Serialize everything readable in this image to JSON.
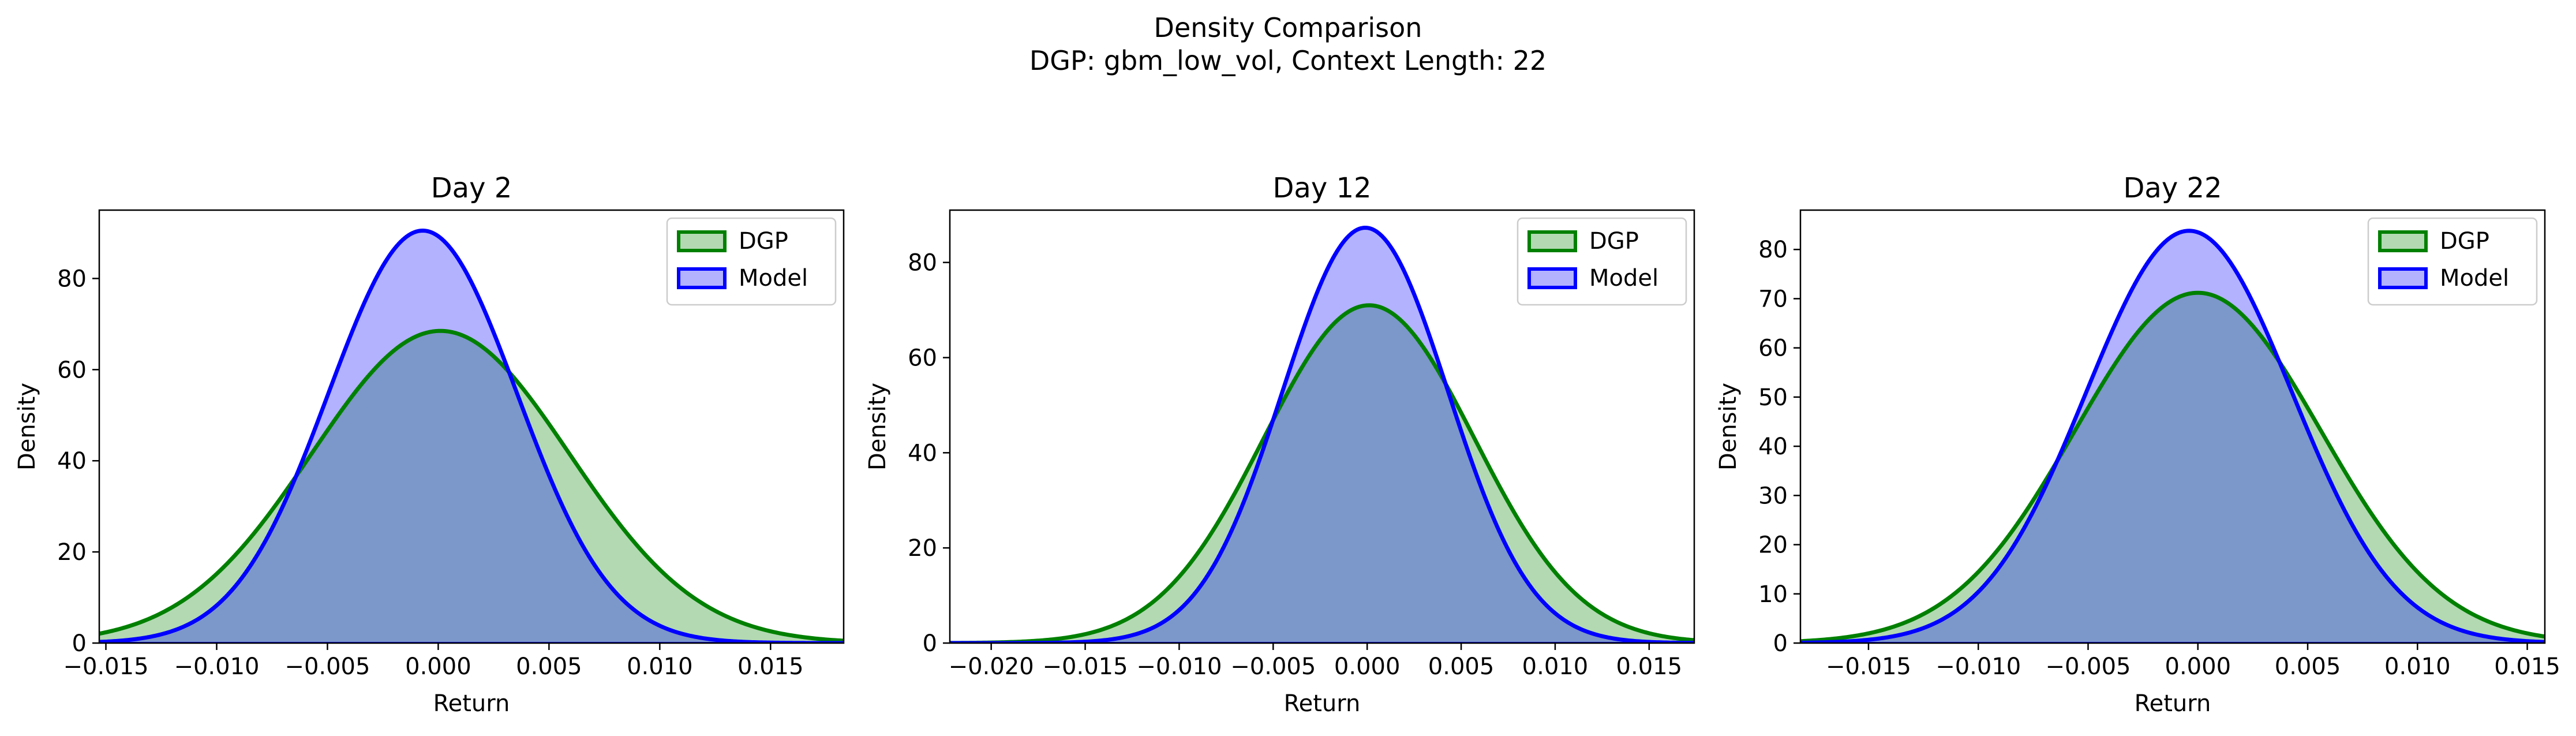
{
  "figure": {
    "title": "Density Comparison",
    "subtitle": "DGP: gbm_low_vol, Context Length: 22"
  },
  "legend": {
    "dgp_label": "DGP",
    "model_label": "Model",
    "dgp_color": "#008000",
    "model_color": "#0000ff",
    "placement": "upper-right"
  },
  "chart_data": [
    {
      "type": "area",
      "title": "Day 2",
      "xlabel": "Return",
      "ylabel": "Density",
      "xlim": [
        -0.0153,
        0.0183
      ],
      "ylim": [
        0,
        95
      ],
      "xticks": [
        -0.015,
        -0.01,
        -0.005,
        0.0,
        0.005,
        0.01,
        0.015
      ],
      "xtick_labels": [
        "−0.015",
        "−0.010",
        "−0.005",
        "0.000",
        "0.005",
        "0.010",
        "0.015"
      ],
      "yticks": [
        0,
        20,
        40,
        60,
        80
      ],
      "ytick_labels": [
        "0",
        "20",
        "40",
        "60",
        "80"
      ],
      "series": [
        {
          "name": "DGP",
          "color": "#008000",
          "peak_x": 0.0001,
          "peak_y": 68.5,
          "sigma": 0.00582
        },
        {
          "name": "Model",
          "color": "#0000ff",
          "peak_x": -0.0007,
          "peak_y": 90.5,
          "sigma": 0.00425
        }
      ]
    },
    {
      "type": "area",
      "title": "Day 12",
      "xlabel": "Return",
      "ylabel": "Density",
      "xlim": [
        -0.0222,
        0.0174
      ],
      "ylim": [
        0,
        91
      ],
      "xticks": [
        -0.02,
        -0.015,
        -0.01,
        -0.005,
        0.0,
        0.005,
        0.01,
        0.015
      ],
      "xtick_labels": [
        "−0.020",
        "−0.015",
        "−0.010",
        "−0.005",
        "0.000",
        "0.005",
        "0.010",
        "0.015"
      ],
      "yticks": [
        0,
        20,
        40,
        60,
        80
      ],
      "ytick_labels": [
        "0",
        "20",
        "40",
        "60",
        "80"
      ],
      "series": [
        {
          "name": "DGP",
          "color": "#008000",
          "peak_x": 0.0001,
          "peak_y": 71.0,
          "sigma": 0.0056
        },
        {
          "name": "Model",
          "color": "#0000ff",
          "peak_x": -0.0001,
          "peak_y": 87.3,
          "sigma": 0.0044
        }
      ]
    },
    {
      "type": "area",
      "title": "Day 22",
      "xlabel": "Return",
      "ylabel": "Density",
      "xlim": [
        -0.0181,
        0.0158
      ],
      "ylim": [
        0,
        88
      ],
      "xticks": [
        -0.015,
        -0.01,
        -0.005,
        0.0,
        0.005,
        0.01,
        0.015
      ],
      "xtick_labels": [
        "−0.015",
        "−0.010",
        "−0.005",
        "0.000",
        "0.005",
        "0.010",
        "0.015"
      ],
      "yticks": [
        0,
        10,
        20,
        30,
        40,
        50,
        60,
        70,
        80
      ],
      "ytick_labels": [
        "0",
        "10",
        "20",
        "30",
        "40",
        "50",
        "60",
        "70",
        "80"
      ],
      "series": [
        {
          "name": "DGP",
          "color": "#008000",
          "peak_x": 0.0,
          "peak_y": 71.2,
          "sigma": 0.0056
        },
        {
          "name": "Model",
          "color": "#0000ff",
          "peak_x": -0.0004,
          "peak_y": 83.8,
          "sigma": 0.0047
        }
      ]
    }
  ]
}
